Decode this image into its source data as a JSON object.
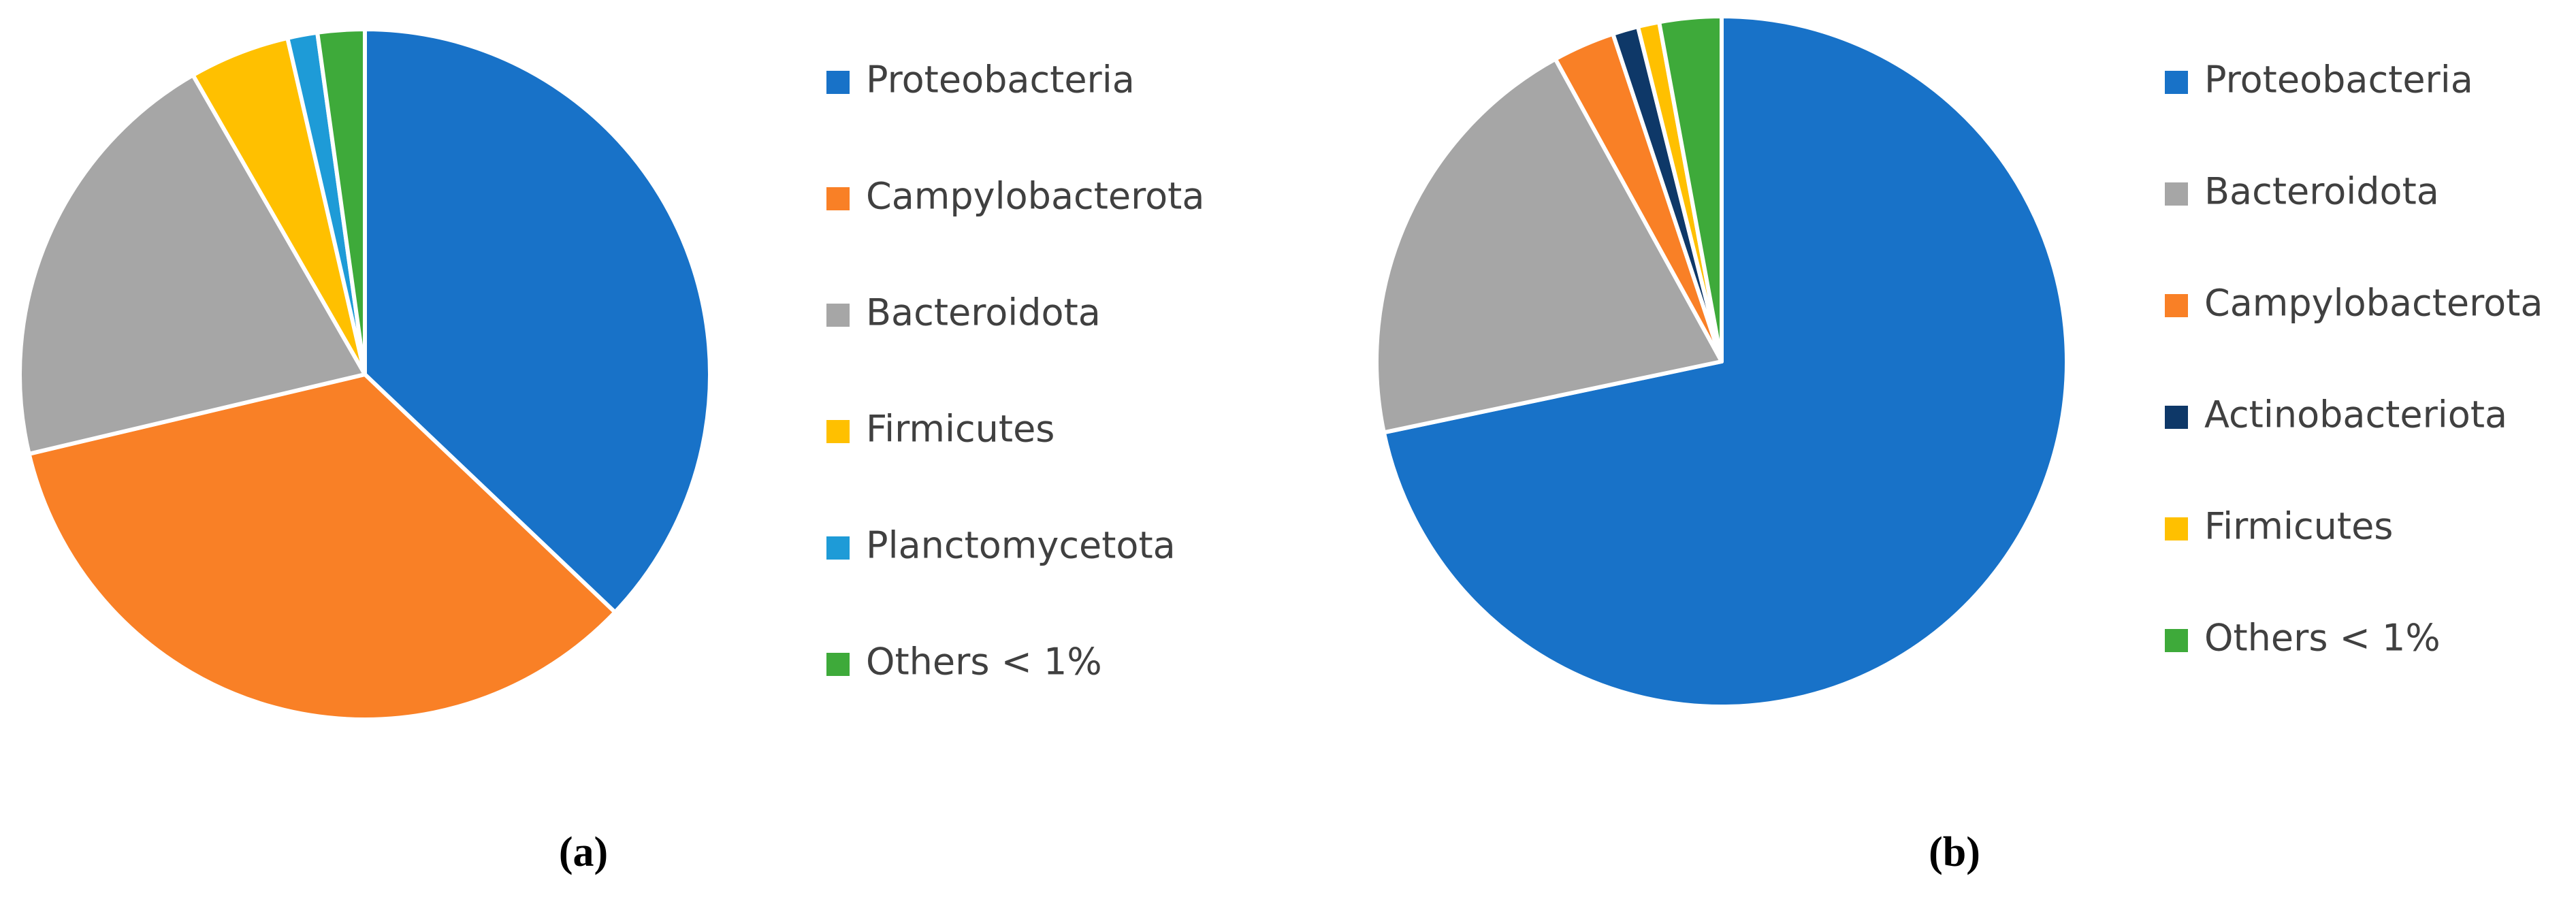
{
  "chart_data": [
    {
      "type": "pie",
      "label": "(a)",
      "categories": [
        "Proteobacteria",
        "Campylobacterota",
        "Bacteroidota",
        "Firmicutes",
        "Planctomycetota",
        "Others < 1%"
      ],
      "values": [
        37.1,
        34.2,
        20.4,
        4.7,
        1.4,
        2.2
      ],
      "colors": [
        "#1872c8",
        "#f98026",
        "#a6a6a6",
        "#ffc000",
        "#1e9bd7",
        "#3eaa3a"
      ]
    },
    {
      "type": "pie",
      "label": "(b)",
      "categories": [
        "Proteobacteria",
        "Bacteroidota",
        "Campylobacterota",
        "Actinobacteriota",
        "Firmicutes",
        "Others < 1%"
      ],
      "values": [
        71.7,
        20.3,
        2.9,
        1.2,
        1.0,
        2.9
      ],
      "colors": [
        "#1872c8",
        "#a6a6a6",
        "#f98026",
        "#0e3868",
        "#ffc000",
        "#3eaa3a"
      ]
    }
  ]
}
